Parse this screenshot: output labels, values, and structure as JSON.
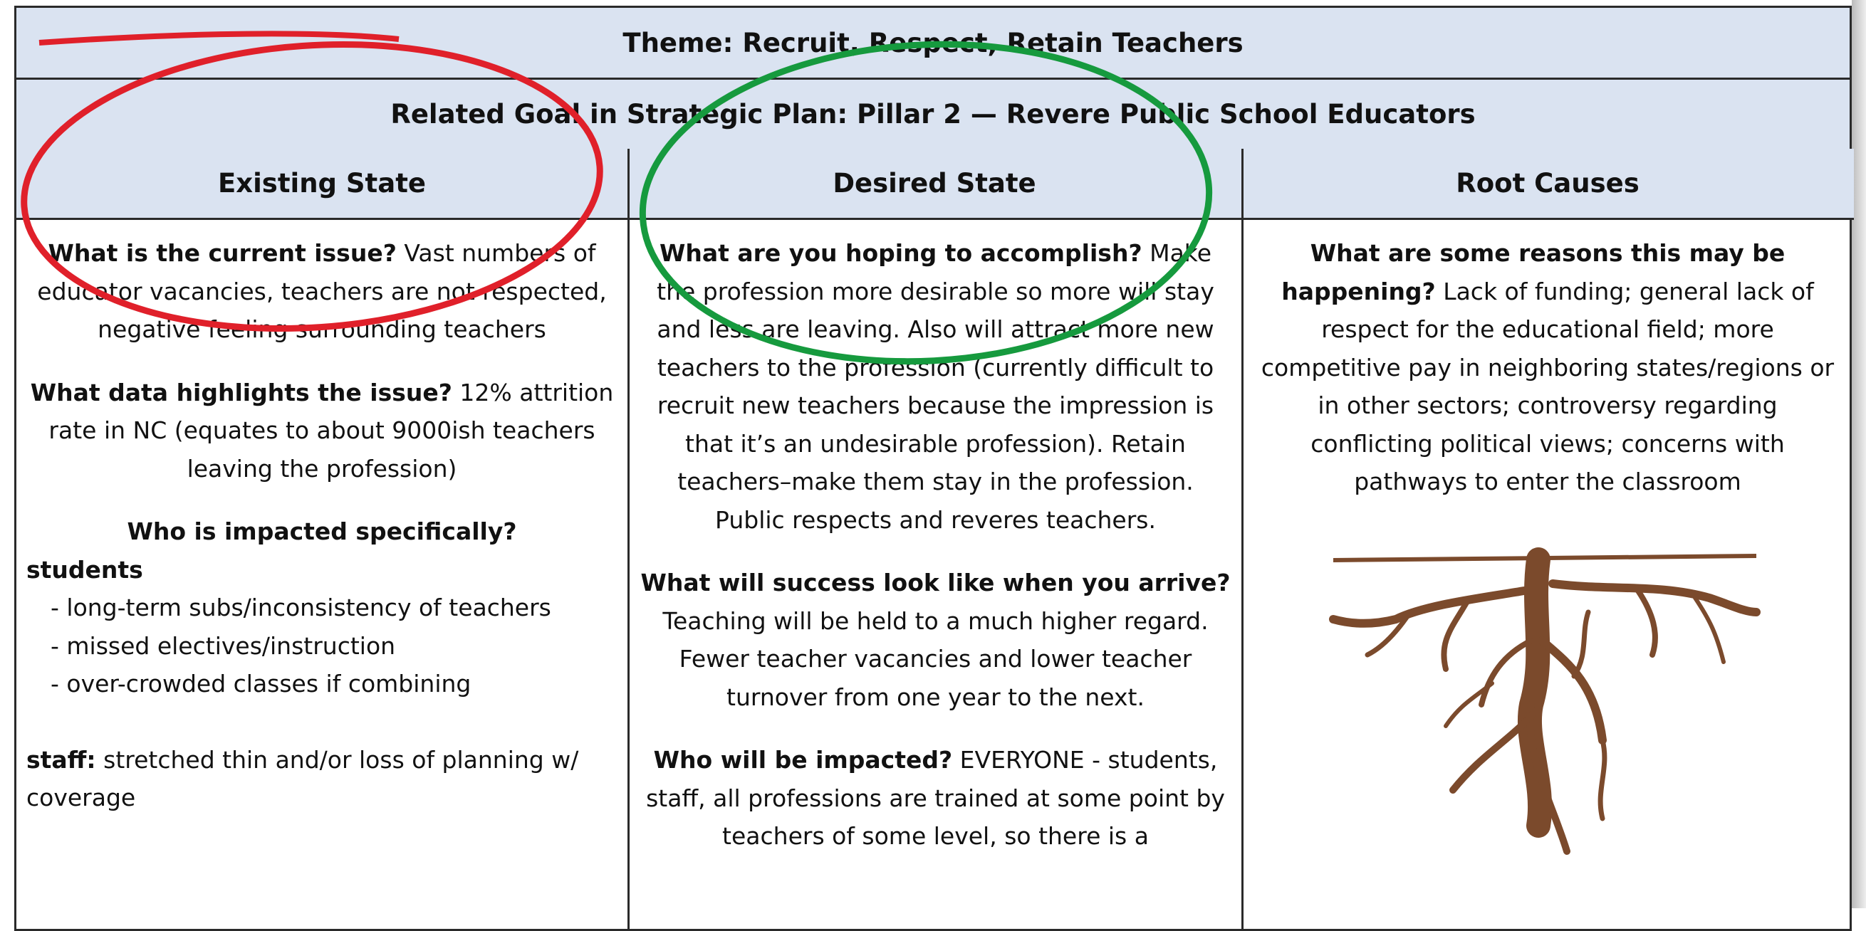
{
  "table": {
    "theme": "Theme: Recruit, Respect, Retain Teachers",
    "goal": "Related Goal in Strategic Plan: Pillar 2 — Revere Public School Educators",
    "columns": [
      "Existing State",
      "Desired State",
      "Root Causes"
    ],
    "existing": [
      {
        "q": "What is the current issue?",
        "a": "Vast numbers of educator vacancies, teachers are not respected, negative feeling surrounding teachers"
      },
      {
        "q": "What data highlights the issue?",
        "a": "12% attrition rate in NC (equates to about 9000ish teachers leaving the profession)"
      }
    ],
    "impacted": {
      "q": "Who is impacted specifically?",
      "group": "students",
      "items": [
        "- long-term subs/inconsistency of teachers",
        "- missed electives/instruction",
        "- over-crowded classes if combining"
      ],
      "staff_label": "staff:",
      "staff_text": "stretched thin and/or loss of planning w/ coverage"
    },
    "desired": [
      {
        "q": "What are you hoping to accomplish?",
        "a": "Make the profession more desirable so more will stay and less are leaving. Also will attract more new teachers to the profession (currently difficult to recruit new teachers because the impression is that it’s an undesirable profession). Retain teachers–make them stay in the profession. Public respects and reveres teachers."
      },
      {
        "q": "What will success look like when you arrive?",
        "a": "Teaching will be held to a much higher regard. Fewer teacher vacancies and lower teacher turnover from one year to the next."
      },
      {
        "q": "Who will be impacted?",
        "a": "EVERYONE - students, staff, all professions are trained at some point by teachers of some level, so there is a"
      }
    ],
    "root": [
      {
        "q": "What are some reasons this may be happening?",
        "a": "Lack of funding; general lack of respect for the educational field; more competitive pay in neighboring states/regions or in other sectors; controversy regarding conflicting political views; concerns with pathways to enter the classroom"
      }
    ]
  }
}
